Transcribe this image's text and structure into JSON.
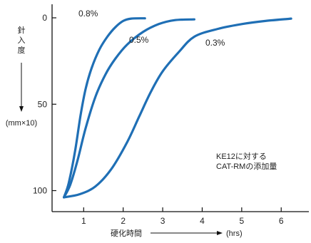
{
  "chart_data": {
    "type": "line",
    "xlabel": "硬化時間",
    "xunit": "(hrs)",
    "ylabel": "針入度",
    "yunit": "(mm×10)",
    "xlim": [
      0.2,
      6.7
    ],
    "ylim": [
      0,
      120
    ],
    "y_inverted": true,
    "xticks": [
      1,
      2,
      3,
      4,
      5,
      6
    ],
    "yticks": [
      0,
      50,
      100
    ],
    "annotation": [
      "KE12に対する",
      "CAT-RMの添加量"
    ],
    "colors": {
      "line": "#1f6fb5",
      "frame": "#111111"
    },
    "series": [
      {
        "name": "0.8%",
        "x": [
          0.5,
          0.62,
          0.78,
          0.92,
          1.05,
          1.2,
          1.4,
          1.6,
          1.8,
          2.0,
          2.2,
          2.55
        ],
        "y": [
          114,
          105,
          85,
          62,
          45,
          32,
          20,
          12,
          6,
          2,
          0.5,
          0.3
        ]
      },
      {
        "name": "0.5%",
        "x": [
          0.5,
          0.66,
          0.85,
          1.05,
          1.3,
          1.55,
          1.8,
          2.1,
          2.5,
          2.9,
          3.3,
          3.8
        ],
        "y": [
          114,
          106,
          90,
          70,
          50,
          36,
          26,
          17,
          9,
          4,
          1.5,
          1
        ]
      },
      {
        "name": "0.3%",
        "x": [
          0.5,
          0.9,
          1.3,
          1.7,
          2.1,
          2.4,
          2.7,
          3.0,
          3.4,
          3.8,
          4.4,
          5.0,
          5.6,
          6.25
        ],
        "y": [
          114,
          112,
          107,
          96,
          79,
          63,
          47,
          34,
          22,
          12,
          7,
          4,
          2,
          0.5
        ]
      }
    ]
  }
}
